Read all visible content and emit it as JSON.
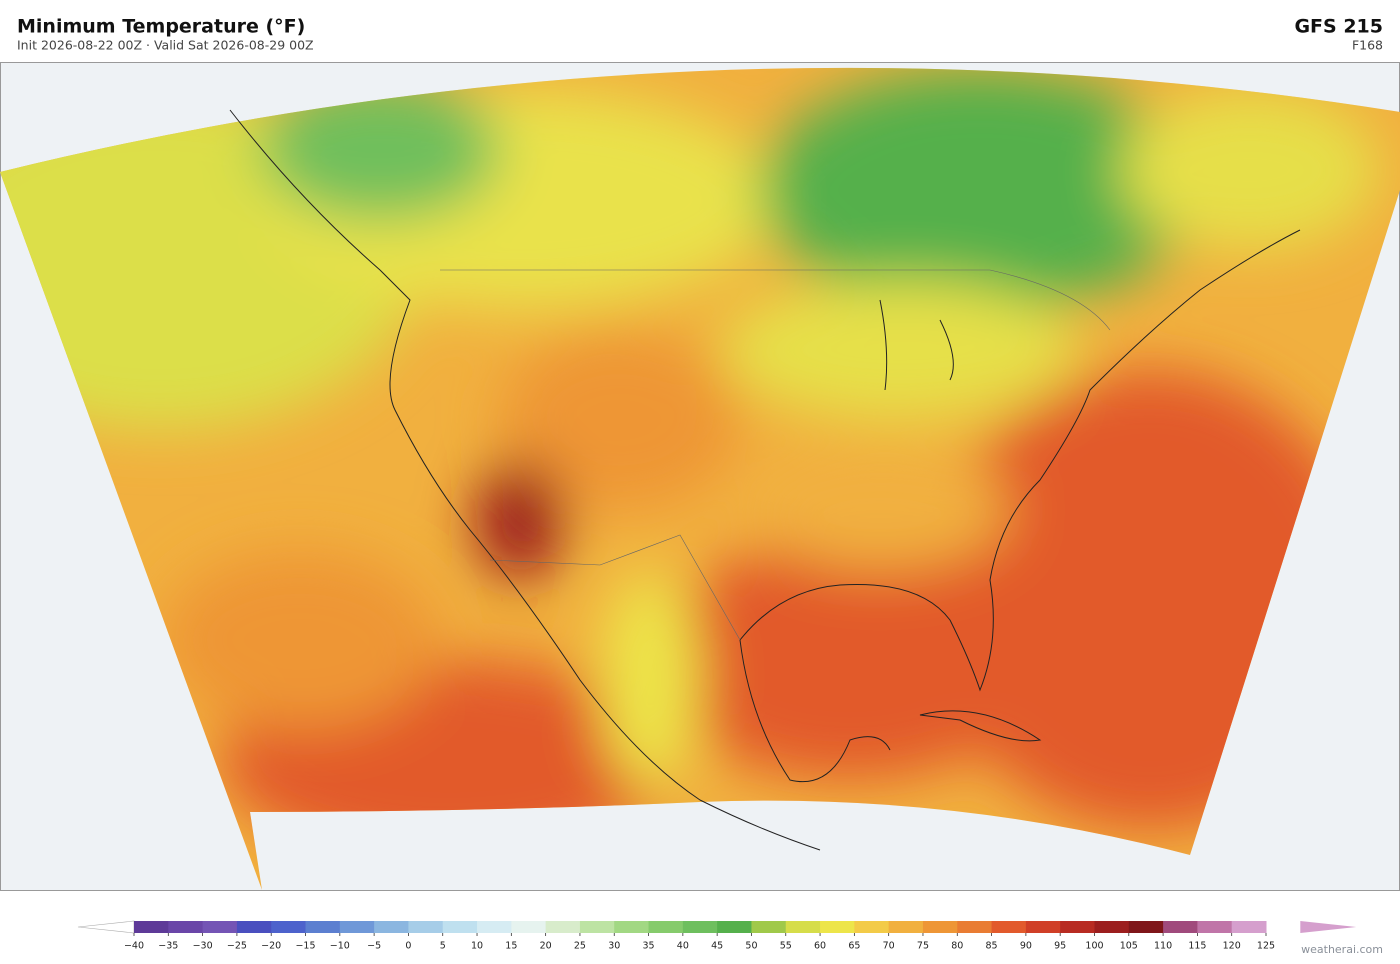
{
  "header": {
    "title": "Minimum Temperature  (°F)",
    "subtitle": "Init 2026-08-22 00Z  ·  Valid Sat 2026-08-29 00Z",
    "model": "GFS  215",
    "forecast_hour": "F168"
  },
  "colorbar": {
    "lim": [
      -40,
      125
    ],
    "ticks": [
      {
        "value": -40,
        "label": "−40"
      },
      {
        "value": -35,
        "label": "−35"
      },
      {
        "value": -30,
        "label": "−30"
      },
      {
        "value": -25,
        "label": "−25"
      },
      {
        "value": -20,
        "label": "−20"
      },
      {
        "value": -15,
        "label": "−15"
      },
      {
        "value": -10,
        "label": "−10"
      },
      {
        "value": -5,
        "label": "−5"
      },
      0,
      5,
      10,
      15,
      20,
      25,
      30,
      35,
      40,
      45,
      50,
      55,
      60,
      65,
      70,
      75,
      80,
      85,
      90,
      95,
      100,
      105,
      110,
      115,
      120,
      125
    ],
    "colors": [
      "#5e3a98",
      "#6a46a8",
      "#7454b5",
      "#4a4fbf",
      "#4d62cc",
      "#5c7fd0",
      "#6f98d8",
      "#8bb6e0",
      "#a6cde8",
      "#bfe0ef",
      "#d6ecf3",
      "#e6f3ef",
      "#d8eccb",
      "#bde3a3",
      "#a2d883",
      "#86cb6c",
      "#6ebf5e",
      "#55b04c",
      "#a0c94a",
      "#d6dd4a",
      "#ede54a",
      "#f3cb48",
      "#f1b03f",
      "#ee9636",
      "#e97c33",
      "#e25a2c",
      "#d03f27",
      "#b82b22",
      "#9c1e1e",
      "#7f1619",
      "#a04a7c",
      "#c075a8",
      "#d59fcd"
    ],
    "under_color": "#ffffff",
    "over_color": "#d59fcd"
  },
  "watermark": "weatherai.com"
}
